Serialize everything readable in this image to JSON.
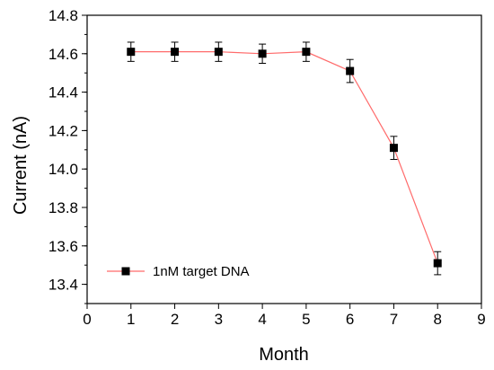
{
  "chart_data": {
    "type": "line",
    "xlabel": "Month",
    "ylabel": "Current (nA)",
    "xlim": [
      0,
      9
    ],
    "ylim": [
      13.3,
      14.8
    ],
    "xticks": [
      0,
      1,
      2,
      3,
      4,
      5,
      6,
      7,
      8,
      9
    ],
    "yticks": [
      13.4,
      13.6,
      13.8,
      14.0,
      14.2,
      14.4,
      14.6,
      14.8
    ],
    "ytick_labels": [
      "13.4",
      "13.6",
      "13.8",
      "14.0",
      "14.2",
      "14.4",
      "14.6",
      "14.8"
    ],
    "grid": false,
    "legend_position": "bottom-left",
    "series": [
      {
        "name": "1nM target DNA",
        "marker": "square",
        "marker_color": "#000000",
        "line_color": "#ff6b6b",
        "x": [
          1,
          2,
          3,
          4,
          5,
          6,
          7,
          8
        ],
        "y": [
          14.61,
          14.61,
          14.61,
          14.6,
          14.61,
          14.51,
          14.11,
          13.51
        ],
        "error": [
          0.05,
          0.05,
          0.05,
          0.05,
          0.05,
          0.06,
          0.06,
          0.06
        ]
      }
    ]
  }
}
